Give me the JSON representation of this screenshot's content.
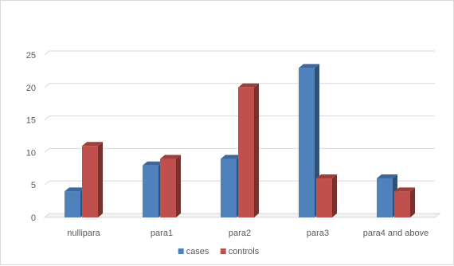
{
  "chart_data": {
    "type": "bar",
    "title": "",
    "xlabel": "",
    "ylabel": "",
    "categories": [
      "nullipara",
      "para1",
      "para2",
      "para3",
      "para4 and above"
    ],
    "series": [
      {
        "name": "cases",
        "values": [
          4,
          8,
          9,
          23,
          6
        ],
        "color": "#4f81bd"
      },
      {
        "name": "controls",
        "values": [
          11,
          9,
          20,
          6,
          4
        ],
        "color": "#c0504d"
      }
    ],
    "ylim": [
      0,
      25
    ],
    "yticks": [
      0,
      5,
      10,
      15,
      20,
      25
    ],
    "grid": true,
    "style": "3d",
    "legend_position": "bottom"
  }
}
